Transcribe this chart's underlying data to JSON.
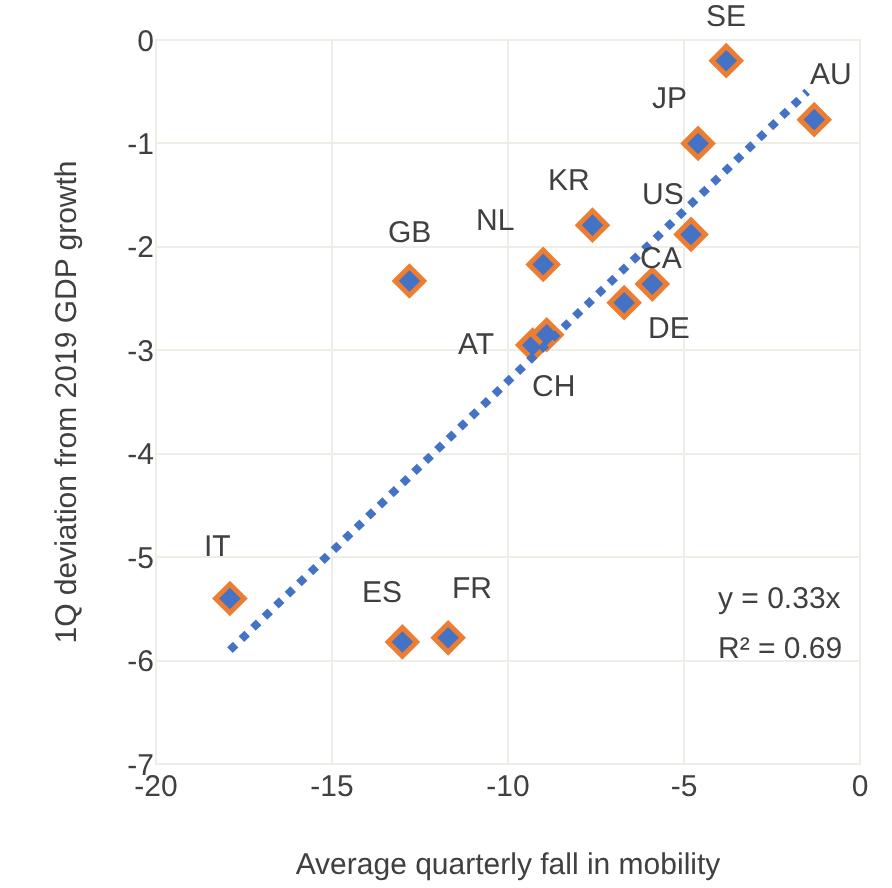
{
  "chart_data": {
    "type": "scatter",
    "xlabel": "Average quarterly fall in mobility",
    "ylabel": "1Q deviation from 2019 GDP growth",
    "xlim": [
      -20,
      0
    ],
    "xticks": [
      -20,
      -15,
      -10,
      -5,
      0
    ],
    "ylim": [
      -7,
      0
    ],
    "yticks": [
      -7,
      -6,
      -5,
      -4,
      -3,
      -2,
      -1,
      0
    ],
    "grid": true,
    "series": [
      {
        "marker": "diamond",
        "color": "#ed7d31",
        "x": [
          -3.8,
          -1.3,
          -4.6,
          -4.8,
          -7.6,
          -9.0,
          -6.7,
          -5.9,
          -12.8,
          -9.3,
          -8.9,
          -17.9,
          -13.0,
          -11.7
        ],
        "values": [
          -0.2,
          -0.77,
          -1.0,
          -1.88,
          -1.79,
          -2.17,
          -2.54,
          -2.36,
          -2.33,
          -2.95,
          -2.85,
          -5.4,
          -5.82,
          -5.78
        ]
      },
      {
        "type": "line",
        "marker": "none",
        "color": "#4472c4",
        "line_style": "dotted",
        "x": [
          -17.9,
          -1.5
        ],
        "values": [
          -5.9,
          -0.5
        ]
      }
    ],
    "annotations": [
      {
        "text": "SE",
        "x": -3.8,
        "y": -0.2
      },
      {
        "text": "AU",
        "x": -1.3,
        "y": -0.77
      },
      {
        "text": "JP",
        "x": -4.6,
        "y": -1.0
      },
      {
        "text": "US",
        "x": -4.8,
        "y": -1.88
      },
      {
        "text": "KR",
        "x": -7.6,
        "y": -1.79
      },
      {
        "text": "NL",
        "x": -9.0,
        "y": -2.17
      },
      {
        "text": "CA",
        "x": -6.7,
        "y": -2.54
      },
      {
        "text": "DE",
        "x": -5.9,
        "y": -2.36
      },
      {
        "text": "GB",
        "x": -12.8,
        "y": -2.33
      },
      {
        "text": "AT",
        "x": -9.3,
        "y": -2.95
      },
      {
        "text": "CH",
        "x": -8.9,
        "y": -2.85
      },
      {
        "text": "IT",
        "x": -17.9,
        "y": -5.4
      },
      {
        "text": "ES",
        "x": -13.0,
        "y": -5.82
      },
      {
        "text": "FR",
        "x": -11.7,
        "y": -5.78
      },
      "y = 0.33x",
      "R² = 0.69"
    ]
  }
}
